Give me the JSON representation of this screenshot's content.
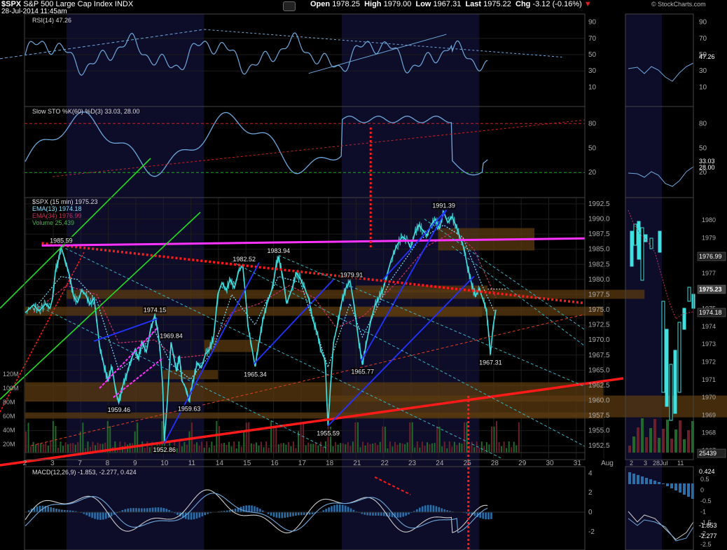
{
  "header": {
    "symbol": "$SPX",
    "name": "S&P 500 Large Cap Index",
    "exchange": "INDX",
    "datetime": "28-Jul-2014 11:45am",
    "open_label": "Open",
    "open": "1978.25",
    "high_label": "High",
    "high": "1979.00",
    "low_label": "Low",
    "low": "1967.31",
    "last_label": "Last",
    "last": "1975.22",
    "chg_label": "Chg",
    "chg": "-3.12 (-0.16%)",
    "down_arrow": "▼",
    "watermark": "© StockCharts.com"
  },
  "colors": {
    "price": "#40e0e0",
    "ema13": "#80e0ff",
    "ema34": "#c03060",
    "indicator": "#6fa8dc",
    "trend_red": "#ff1a1a",
    "trend_magenta": "#ff33ff",
    "trend_green": "#22dd22",
    "trend_blue": "#2233ff",
    "zone": "#5a3a10",
    "band": "#0d0d2a"
  },
  "chart_data": [
    {
      "panel": "rsi",
      "type": "line",
      "legend": "RSI(14) 47.26",
      "ylim": [
        0,
        100
      ],
      "ticks": [
        10,
        30,
        50,
        70,
        90
      ],
      "current": "47.26"
    },
    {
      "panel": "stochastic",
      "type": "line",
      "legend": "Slow STO %K(60) %D(3) 33.03, 28.00",
      "ylim": [
        0,
        100
      ],
      "ticks": [
        20,
        50,
        80
      ],
      "current": [
        "33.03",
        "28.00"
      ]
    },
    {
      "panel": "price",
      "type": "line",
      "legend": [
        "$SPX (15 min) 1975.23",
        "EMA(13) 1974.18",
        "EMA(34) 1976.99",
        "Volume 25,439"
      ],
      "ylim": [
        1950,
        1995
      ],
      "ticks": [
        "1952.5",
        "1955.0",
        "1957.5",
        "1960.0",
        "1962.5",
        "1965.0",
        "1967.5",
        "1970.0",
        "1972.5",
        "1975.0",
        "1977.5",
        "1980.0",
        "1982.5",
        "1985.0",
        "1987.5",
        "1990.0",
        "1992.5"
      ],
      "vol_ticks": [
        "20M",
        "40M",
        "60M",
        "80M",
        "100M",
        "120M"
      ],
      "x_labels": [
        "2",
        "3",
        "7",
        "8",
        "9",
        "10",
        "11",
        "14",
        "15",
        "16",
        "17",
        "18",
        "21",
        "22",
        "23",
        "24",
        "25",
        "28",
        "29",
        "30",
        "31",
        "Aug"
      ],
      "annotations": [
        {
          "label": "1985.59",
          "day": 1.3,
          "price": 1985.59
        },
        {
          "label": "1959.46",
          "day": 3.4,
          "price": 1959.46
        },
        {
          "label": "1974.15",
          "day": 4.7,
          "price": 1974.15
        },
        {
          "label": "1969.84",
          "day": 5.3,
          "price": 1969.84
        },
        {
          "label": "1952.86",
          "day": 5.05,
          "price": 1952.86
        },
        {
          "label": "1959.63",
          "day": 5.95,
          "price": 1959.63
        },
        {
          "label": "1982.52",
          "day": 7.95,
          "price": 1982.52
        },
        {
          "label": "1965.34",
          "day": 8.35,
          "price": 1965.34
        },
        {
          "label": "1983.94",
          "day": 9.2,
          "price": 1983.94
        },
        {
          "label": "1955.59",
          "day": 11.0,
          "price": 1955.59
        },
        {
          "label": "1979.91",
          "day": 11.85,
          "price": 1979.91
        },
        {
          "label": "1965.77",
          "day": 12.25,
          "price": 1965.77
        },
        {
          "label": "1991.39",
          "day": 15.2,
          "price": 1991.39
        },
        {
          "label": "1967.31",
          "day": 16.9,
          "price": 1967.31
        }
      ],
      "price_path": [
        [
          0.0,
          1974.5
        ],
        [
          0.3,
          1975.8
        ],
        [
          0.5,
          1974.8
        ],
        [
          0.75,
          1976.0
        ],
        [
          0.9,
          1975.2
        ],
        [
          1.0,
          1977.0
        ],
        [
          1.1,
          1981.5
        ],
        [
          1.2,
          1983.0
        ],
        [
          1.3,
          1985.4
        ],
        [
          1.45,
          1983.2
        ],
        [
          1.6,
          1980.8
        ],
        [
          1.75,
          1977.3
        ],
        [
          1.9,
          1976.2
        ],
        [
          2.05,
          1978.2
        ],
        [
          2.2,
          1977.4
        ],
        [
          2.35,
          1975.9
        ],
        [
          2.5,
          1976.9
        ],
        [
          2.6,
          1973.2
        ],
        [
          2.7,
          1969.0
        ],
        [
          2.85,
          1966.0
        ],
        [
          3.0,
          1963.3
        ],
        [
          3.15,
          1965.6
        ],
        [
          3.3,
          1961.2
        ],
        [
          3.4,
          1959.6
        ],
        [
          3.55,
          1962.5
        ],
        [
          3.7,
          1964.5
        ],
        [
          3.85,
          1966.8
        ],
        [
          4.0,
          1968.5
        ],
        [
          4.1,
          1966.8
        ],
        [
          4.25,
          1969.6
        ],
        [
          4.4,
          1968.0
        ],
        [
          4.55,
          1971.6
        ],
        [
          4.7,
          1974.0
        ],
        [
          4.8,
          1972.1
        ],
        [
          4.9,
          1968.4
        ],
        [
          5.0,
          1962.0
        ],
        [
          5.05,
          1953.1
        ],
        [
          5.15,
          1959.0
        ],
        [
          5.25,
          1966.3
        ],
        [
          5.3,
          1969.6
        ],
        [
          5.4,
          1967.1
        ],
        [
          5.5,
          1964.8
        ],
        [
          5.6,
          1967.4
        ],
        [
          5.7,
          1963.2
        ],
        [
          5.85,
          1961.9
        ],
        [
          5.95,
          1959.8
        ],
        [
          6.1,
          1963.3
        ],
        [
          6.25,
          1966.2
        ],
        [
          6.4,
          1965.4
        ],
        [
          6.55,
          1967.7
        ],
        [
          6.7,
          1968.4
        ],
        [
          6.85,
          1970.6
        ],
        [
          7.0,
          1977.6
        ],
        [
          7.15,
          1979.5
        ],
        [
          7.3,
          1978.2
        ],
        [
          7.45,
          1980.0
        ],
        [
          7.6,
          1978.6
        ],
        [
          7.75,
          1981.3
        ],
        [
          7.9,
          1982.4
        ],
        [
          8.0,
          1977.6
        ],
        [
          8.1,
          1972.1
        ],
        [
          8.2,
          1969.6
        ],
        [
          8.35,
          1965.6
        ],
        [
          8.5,
          1969.8
        ],
        [
          8.65,
          1973.6
        ],
        [
          8.8,
          1976.2
        ],
        [
          9.0,
          1978.8
        ],
        [
          9.1,
          1982.0
        ],
        [
          9.2,
          1983.8
        ],
        [
          9.35,
          1980.6
        ],
        [
          9.5,
          1976.0
        ],
        [
          9.7,
          1978.6
        ],
        [
          9.85,
          1981.1
        ],
        [
          10.0,
          1980.1
        ],
        [
          10.15,
          1978.6
        ],
        [
          10.3,
          1976.8
        ],
        [
          10.45,
          1973.3
        ],
        [
          10.6,
          1971.3
        ],
        [
          10.75,
          1968.2
        ],
        [
          10.9,
          1966.6
        ],
        [
          10.95,
          1961.0
        ],
        [
          11.0,
          1955.8
        ],
        [
          11.1,
          1962.8
        ],
        [
          11.2,
          1969.6
        ],
        [
          11.35,
          1972.6
        ],
        [
          11.5,
          1976.3
        ],
        [
          11.65,
          1978.6
        ],
        [
          11.8,
          1979.8
        ],
        [
          11.95,
          1975.8
        ],
        [
          12.1,
          1970.4
        ],
        [
          12.25,
          1965.9
        ],
        [
          12.4,
          1969.6
        ],
        [
          12.55,
          1973.0
        ],
        [
          12.7,
          1975.6
        ],
        [
          12.85,
          1977.0
        ],
        [
          13.0,
          1978.4
        ],
        [
          13.15,
          1980.9
        ],
        [
          13.3,
          1983.3
        ],
        [
          13.5,
          1985.6
        ],
        [
          13.7,
          1987.1
        ],
        [
          13.9,
          1986.3
        ],
        [
          14.0,
          1985.2
        ],
        [
          14.15,
          1987.6
        ],
        [
          14.3,
          1989.0
        ],
        [
          14.45,
          1988.1
        ],
        [
          14.6,
          1987.3
        ],
        [
          14.75,
          1989.1
        ],
        [
          14.9,
          1990.0
        ],
        [
          15.05,
          1988.4
        ],
        [
          15.2,
          1991.2
        ],
        [
          15.35,
          1989.4
        ],
        [
          15.5,
          1990.4
        ],
        [
          15.65,
          1988.9
        ],
        [
          15.8,
          1986.9
        ],
        [
          15.95,
          1985.1
        ],
        [
          16.05,
          1982.5
        ],
        [
          16.2,
          1979.6
        ],
        [
          16.35,
          1977.2
        ],
        [
          16.5,
          1978.5
        ],
        [
          16.65,
          1976.4
        ],
        [
          16.75,
          1975.1
        ],
        [
          16.85,
          1970.5
        ],
        [
          16.9,
          1967.6
        ],
        [
          17.0,
          1972.3
        ],
        [
          17.1,
          1975.0
        ]
      ],
      "ema13_path": [
        [
          0.3,
          1975.0
        ],
        [
          1.3,
          1980.5
        ],
        [
          1.9,
          1980.0
        ],
        [
          2.6,
          1976.5
        ],
        [
          3.4,
          1965.0
        ],
        [
          4.0,
          1967.0
        ],
        [
          4.7,
          1971.5
        ],
        [
          5.3,
          1966.0
        ],
        [
          6.0,
          1963.5
        ],
        [
          6.8,
          1968.0
        ],
        [
          7.5,
          1977.5
        ],
        [
          8.35,
          1972.5
        ],
        [
          9.2,
          1980.5
        ],
        [
          10.0,
          1979.5
        ],
        [
          11.0,
          1965.5
        ],
        [
          11.8,
          1976.0
        ],
        [
          12.25,
          1970.5
        ],
        [
          13.3,
          1980.0
        ],
        [
          14.3,
          1986.5
        ],
        [
          15.2,
          1989.0
        ],
        [
          15.9,
          1987.0
        ],
        [
          16.6,
          1979.0
        ],
        [
          17.1,
          1974.2
        ]
      ],
      "ema34_path": [
        [
          0.3,
          1974.5
        ],
        [
          1.5,
          1979.0
        ],
        [
          2.6,
          1977.5
        ],
        [
          3.4,
          1969.5
        ],
        [
          4.7,
          1970.0
        ],
        [
          5.5,
          1967.0
        ],
        [
          6.5,
          1967.5
        ],
        [
          7.5,
          1974.5
        ],
        [
          8.5,
          1976.0
        ],
        [
          9.6,
          1979.0
        ],
        [
          10.5,
          1977.0
        ],
        [
          11.3,
          1972.0
        ],
        [
          12.3,
          1974.0
        ],
        [
          13.5,
          1979.5
        ],
        [
          14.6,
          1985.5
        ],
        [
          15.6,
          1988.0
        ],
        [
          16.3,
          1985.0
        ],
        [
          17.1,
          1977.0
        ]
      ],
      "right_panel": {
        "x_labels": [
          "2",
          "3",
          "28Jul",
          "11"
        ],
        "ticks": [
          "1967",
          "1968",
          "1969",
          "1970",
          "1971",
          "1972",
          "1973",
          "1974",
          "1975",
          "1976",
          "1977",
          "1978",
          "1979",
          "1980"
        ],
        "badges": [
          "1976.99",
          "1975.23",
          "1974.18",
          "25439"
        ]
      }
    },
    {
      "panel": "macd",
      "type": "line",
      "legend": "MACD(12,26,9) -1.853, -2.277, 0.424",
      "ylim": [
        -2.6,
        4.2
      ],
      "ticks": [
        "-2",
        "0",
        "2",
        "4"
      ],
      "right_ticks": [
        "-2.5",
        "-2",
        "-1.5",
        "-1",
        "-0.5",
        "0",
        "0.5"
      ],
      "badges": [
        "0.424",
        "-1.853",
        "-2.277"
      ]
    }
  ]
}
